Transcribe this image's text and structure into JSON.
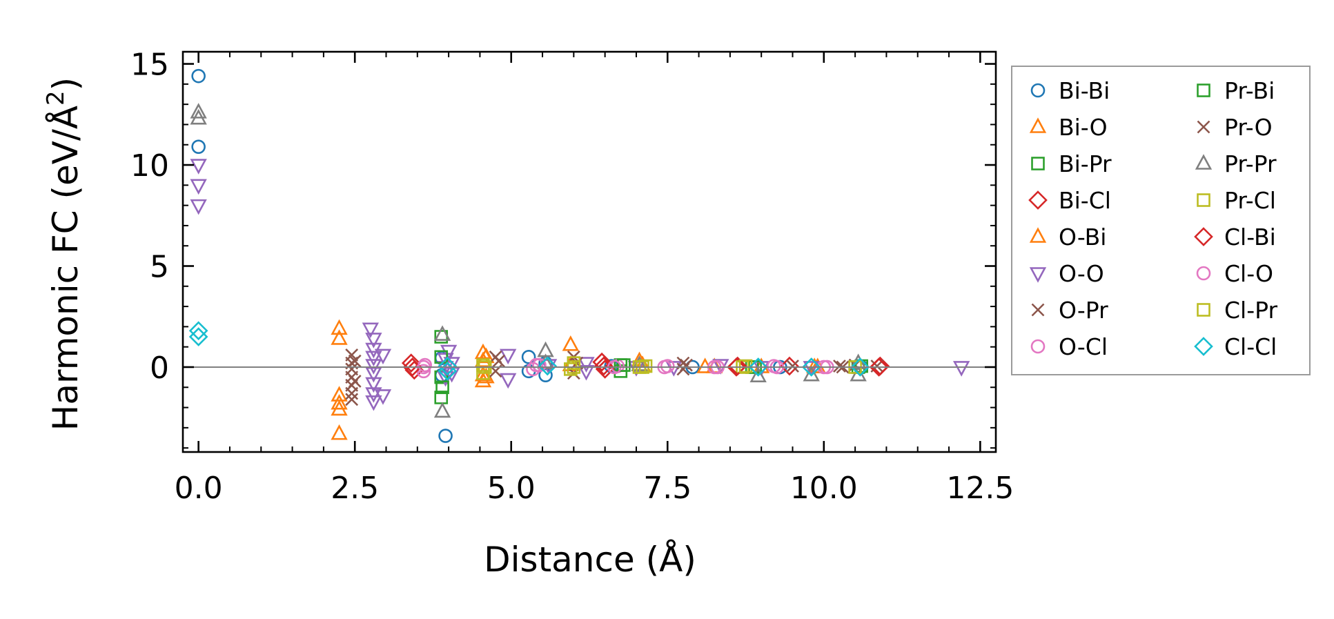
{
  "chart_data": {
    "type": "scatter",
    "title": "",
    "xlabel": "Distance (Å)",
    "ylabel_parts": {
      "main": "Harmonic FC (eV/Å",
      "sup": "2",
      "end": ")"
    },
    "xlim": [
      -0.25,
      12.75
    ],
    "ylim": [
      -4.2,
      15.6
    ],
    "xticks": [
      0.0,
      2.5,
      5.0,
      7.5,
      10.0,
      12.5
    ],
    "xtick_labels": [
      "0.0",
      "2.5",
      "5.0",
      "7.5",
      "10.0",
      "12.5"
    ],
    "yticks": [
      0,
      5,
      10,
      15
    ],
    "ytick_labels": [
      "0",
      "5",
      "10",
      "15"
    ],
    "zero_line": 0,
    "legend_position": "outside-right",
    "series": [
      {
        "name": "Bi-Bi",
        "marker": "circle",
        "color": "#1f77b4",
        "points": [
          [
            0,
            14.4
          ],
          [
            0,
            10.9
          ],
          [
            3.89,
            -0.4
          ],
          [
            3.89,
            0.45
          ],
          [
            3.95,
            -3.4
          ],
          [
            5.28,
            0.5
          ],
          [
            5.28,
            -0.2
          ],
          [
            5.55,
            -0.4
          ],
          [
            5.55,
            0.2
          ],
          [
            6.6,
            0.05
          ],
          [
            7.9,
            0.0
          ],
          [
            9.3,
            0.0
          ],
          [
            10.6,
            0.0
          ]
        ]
      },
      {
        "name": "Bi-O",
        "marker": "triangle-up",
        "color": "#ff7f0e",
        "points": [
          [
            2.25,
            1.9
          ],
          [
            2.25,
            1.4
          ],
          [
            2.25,
            -1.4
          ],
          [
            2.25,
            -1.8
          ],
          [
            2.25,
            -2.1
          ],
          [
            2.25,
            -3.3
          ],
          [
            4.55,
            0.7
          ],
          [
            4.55,
            0.3
          ],
          [
            4.55,
            -0.4
          ],
          [
            4.55,
            -0.7
          ],
          [
            5.95,
            1.1
          ],
          [
            5.95,
            0.1
          ],
          [
            7.05,
            0.3
          ],
          [
            8.1,
            0.0
          ],
          [
            9.0,
            0.0
          ],
          [
            9.85,
            0.0
          ]
        ]
      },
      {
        "name": "Bi-Pr",
        "marker": "square",
        "color": "#2ca02c",
        "points": [
          [
            3.88,
            1.5
          ],
          [
            3.88,
            -0.5
          ],
          [
            3.88,
            -1.5
          ],
          [
            6.75,
            -0.2
          ],
          [
            6.75,
            0.1
          ],
          [
            8.85,
            0.0
          ],
          [
            10.55,
            0.0
          ]
        ]
      },
      {
        "name": "Bi-Cl",
        "marker": "diamond",
        "color": "#d62728",
        "points": [
          [
            3.4,
            0.2
          ],
          [
            3.45,
            -0.15
          ],
          [
            6.45,
            0.25
          ],
          [
            6.5,
            -0.1
          ],
          [
            8.6,
            0.0
          ],
          [
            9.45,
            0.05
          ],
          [
            10.9,
            0.05
          ]
        ]
      },
      {
        "name": "O-Bi",
        "marker": "triangle-up",
        "color": "#ff7f0e",
        "points": [
          [
            4.6,
            0.5
          ],
          [
            4.6,
            -0.5
          ],
          [
            7.1,
            0.1
          ],
          [
            8.25,
            0.0
          ],
          [
            9.9,
            0.0
          ]
        ]
      },
      {
        "name": "O-O",
        "marker": "triangle-down",
        "color": "#9467bd",
        "points": [
          [
            0,
            10.0
          ],
          [
            0,
            9.0
          ],
          [
            0,
            8.0
          ],
          [
            2.75,
            1.9
          ],
          [
            2.8,
            1.4
          ],
          [
            2.8,
            0.9
          ],
          [
            2.8,
            0.5
          ],
          [
            2.8,
            0.1
          ],
          [
            2.8,
            -0.3
          ],
          [
            2.8,
            -0.8
          ],
          [
            2.8,
            -1.3
          ],
          [
            2.8,
            -1.7
          ],
          [
            2.95,
            0.6
          ],
          [
            2.95,
            -1.4
          ],
          [
            3.95,
            0.4
          ],
          [
            3.95,
            0.0
          ],
          [
            3.95,
            -0.5
          ],
          [
            4.0,
            0.8
          ],
          [
            4.05,
            0.2
          ],
          [
            4.05,
            -0.3
          ],
          [
            4.95,
            0.6
          ],
          [
            4.95,
            -0.6
          ],
          [
            5.6,
            0.1
          ],
          [
            6.2,
            0.2
          ],
          [
            6.2,
            -0.2
          ],
          [
            7.0,
            0.0
          ],
          [
            7.6,
            0.0
          ],
          [
            8.35,
            0.1
          ],
          [
            9.0,
            0.0
          ],
          [
            9.8,
            0.0
          ],
          [
            12.2,
            0.0
          ]
        ]
      },
      {
        "name": "O-Pr",
        "marker": "x",
        "color": "#8c564b",
        "points": [
          [
            2.45,
            0.6
          ],
          [
            2.45,
            0.2
          ],
          [
            2.45,
            -0.1
          ],
          [
            2.45,
            -0.5
          ],
          [
            2.45,
            -0.9
          ],
          [
            2.45,
            -1.3
          ],
          [
            2.45,
            -1.6
          ],
          [
            4.75,
            0.5
          ],
          [
            4.75,
            -0.2
          ],
          [
            6.0,
            0.5
          ],
          [
            6.0,
            -0.3
          ],
          [
            7.75,
            0.2
          ],
          [
            7.75,
            -0.1
          ],
          [
            9.5,
            0.05
          ],
          [
            10.25,
            0.05
          ],
          [
            10.5,
            0.1
          ],
          [
            10.85,
            0.05
          ]
        ]
      },
      {
        "name": "O-Cl",
        "marker": "circle",
        "color": "#e377c2",
        "points": [
          [
            3.6,
            0.0
          ],
          [
            3.6,
            -0.2
          ],
          [
            5.4,
            0.1
          ],
          [
            6.7,
            0.05
          ],
          [
            7.45,
            0.0
          ],
          [
            8.3,
            0.0
          ],
          [
            9.25,
            0.0
          ],
          [
            10.0,
            0.0
          ]
        ]
      },
      {
        "name": "Pr-Bi",
        "marker": "square",
        "color": "#2ca02c",
        "points": [
          [
            3.88,
            0.5
          ],
          [
            3.9,
            -1.0
          ],
          [
            6.8,
            0.1
          ],
          [
            8.9,
            0.0
          ],
          [
            10.6,
            0.05
          ]
        ]
      },
      {
        "name": "Pr-O",
        "marker": "x",
        "color": "#8c564b",
        "points": [
          [
            2.5,
            0.3
          ],
          [
            2.5,
            -0.7
          ],
          [
            4.8,
            0.3
          ],
          [
            6.05,
            0.2
          ],
          [
            7.8,
            0.1
          ],
          [
            10.3,
            0.0
          ]
        ]
      },
      {
        "name": "Pr-Pr",
        "marker": "triangle-up",
        "color": "#7f7f7f",
        "points": [
          [
            0,
            12.6
          ],
          [
            0,
            12.3
          ],
          [
            3.9,
            1.6
          ],
          [
            3.9,
            -2.2
          ],
          [
            5.55,
            0.8
          ],
          [
            5.55,
            0.2
          ],
          [
            7.05,
            0.1
          ],
          [
            8.95,
            -0.45
          ],
          [
            9.8,
            -0.4
          ],
          [
            10.55,
            -0.4
          ],
          [
            10.55,
            0.2
          ]
        ]
      },
      {
        "name": "Pr-Cl",
        "marker": "square",
        "color": "#bcbd22",
        "points": [
          [
            4.55,
            0.1
          ],
          [
            4.55,
            -0.3
          ],
          [
            5.95,
            -0.1
          ],
          [
            6.0,
            0.2
          ],
          [
            7.05,
            0.0
          ],
          [
            7.15,
            0.05
          ],
          [
            8.7,
            0.0
          ],
          [
            10.5,
            0.0
          ]
        ]
      },
      {
        "name": "Cl-Bi",
        "marker": "diamond",
        "color": "#d62728",
        "points": [
          [
            3.42,
            0.0
          ],
          [
            6.48,
            0.05
          ],
          [
            8.62,
            0.05
          ],
          [
            10.88,
            0.0
          ]
        ]
      },
      {
        "name": "Cl-O",
        "marker": "circle",
        "color": "#e377c2",
        "points": [
          [
            3.62,
            0.1
          ],
          [
            5.35,
            -0.1
          ],
          [
            5.45,
            0.1
          ],
          [
            6.65,
            0.0
          ],
          [
            7.5,
            0.05
          ],
          [
            8.25,
            0.0
          ],
          [
            9.2,
            0.05
          ],
          [
            10.05,
            0.0
          ]
        ]
      },
      {
        "name": "Cl-Pr",
        "marker": "square",
        "color": "#bcbd22",
        "points": [
          [
            4.58,
            0.0
          ],
          [
            6.0,
            0.0
          ],
          [
            7.1,
            0.0
          ],
          [
            8.75,
            0.05
          ]
        ]
      },
      {
        "name": "Cl-Cl",
        "marker": "diamond",
        "color": "#17becf",
        "points": [
          [
            0,
            1.8
          ],
          [
            0,
            1.5
          ],
          [
            3.98,
            0.05
          ],
          [
            3.98,
            -0.2
          ],
          [
            5.58,
            0.05
          ],
          [
            8.95,
            0.0
          ],
          [
            9.8,
            0.0
          ],
          [
            10.58,
            0.0
          ]
        ]
      }
    ]
  }
}
